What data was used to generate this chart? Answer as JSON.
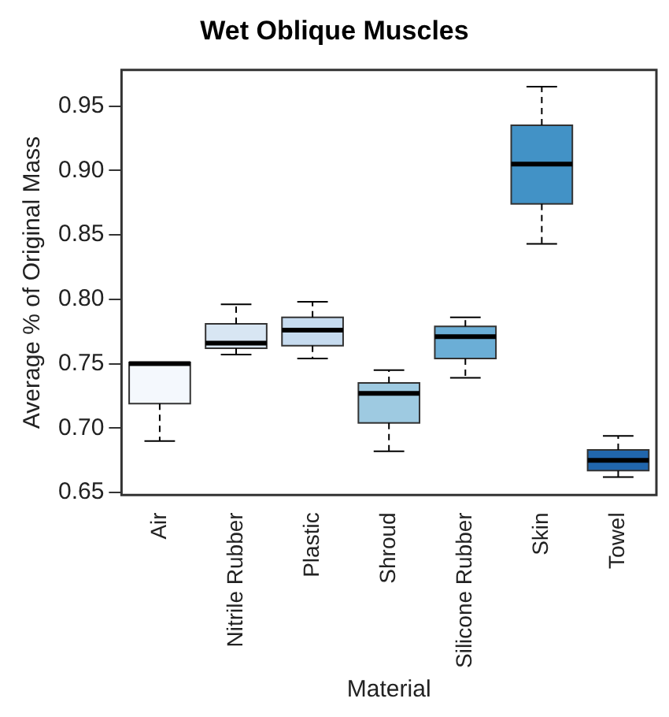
{
  "chart_data": {
    "type": "box",
    "title": "Wet Oblique Muscles",
    "xlabel": "Material",
    "ylabel": "Average % of Original Mass",
    "categories": [
      "Air",
      "Nitrile Rubber",
      "Plastic",
      "Shroud",
      "Silicone Rubber",
      "Skin",
      "Towel"
    ],
    "boxes": [
      {
        "low": 0.69,
        "q1": 0.719,
        "median": 0.75,
        "q3": 0.751,
        "high": 0.751
      },
      {
        "low": 0.757,
        "q1": 0.762,
        "median": 0.766,
        "q3": 0.781,
        "high": 0.796
      },
      {
        "low": 0.754,
        "q1": 0.764,
        "median": 0.776,
        "q3": 0.786,
        "high": 0.798
      },
      {
        "low": 0.682,
        "q1": 0.704,
        "median": 0.727,
        "q3": 0.735,
        "high": 0.745
      },
      {
        "low": 0.739,
        "q1": 0.754,
        "median": 0.771,
        "q3": 0.779,
        "high": 0.786
      },
      {
        "low": 0.843,
        "q1": 0.874,
        "median": 0.905,
        "q3": 0.935,
        "high": 0.965
      },
      {
        "low": 0.662,
        "q1": 0.667,
        "median": 0.675,
        "q3": 0.683,
        "high": 0.694
      }
    ],
    "colors": [
      "#f4f8fd",
      "#d8e6f3",
      "#c6dbef",
      "#9ecae1",
      "#6baed6",
      "#4292c6",
      "#2166ac"
    ],
    "ylim": [
      0.648,
      0.978
    ],
    "yticks": [
      0.65,
      {
        "value": 0.7,
        "label": "0.70"
      },
      0.75,
      {
        "value": 0.8,
        "label": "0.80"
      },
      0.85,
      {
        "value": 0.9,
        "label": "0.90"
      },
      0.95
    ],
    "grid": false,
    "legend": false
  }
}
